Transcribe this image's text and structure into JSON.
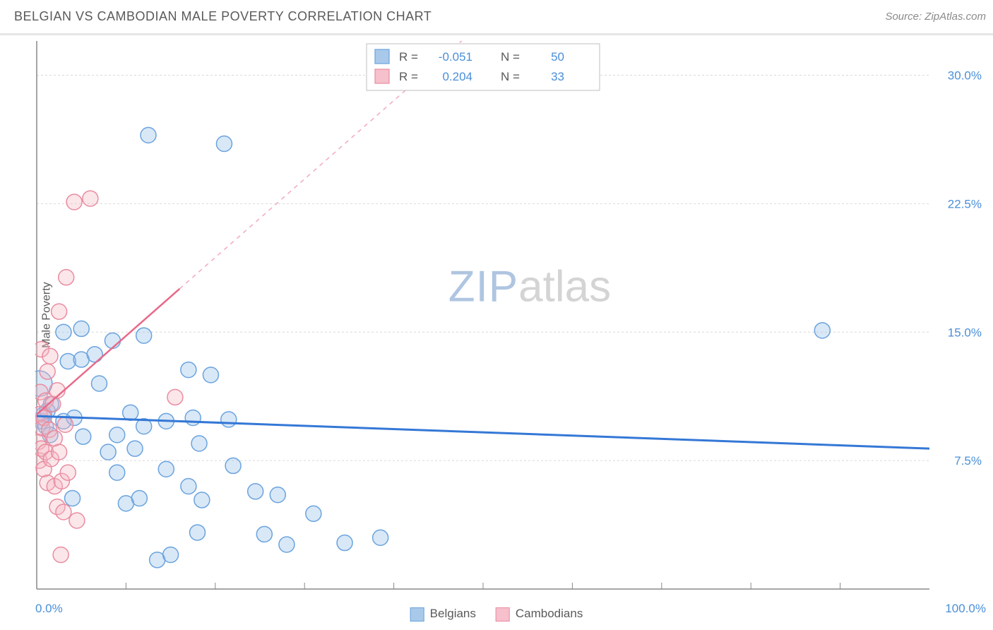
{
  "header": {
    "title": "BELGIAN VS CAMBODIAN MALE POVERTY CORRELATION CHART",
    "source_label": "Source: ZipAtlas.com"
  },
  "watermark": {
    "part1": "ZIP",
    "part2": "atlas"
  },
  "chart": {
    "type": "scatter",
    "background_color": "#ffffff",
    "grid_color": "#d9d9d9",
    "axis_color": "#888888",
    "ylabel": "Male Poverty",
    "ylabel_fontsize": 16,
    "xlim": [
      0,
      100
    ],
    "ylim": [
      0,
      32
    ],
    "x_ticks": [
      10,
      20,
      30,
      40,
      50,
      60,
      70,
      80,
      90
    ],
    "x_min_label": "0.0%",
    "x_max_label": "100.0%",
    "y_gridlines": [
      {
        "value": 7.5,
        "label": "7.5%"
      },
      {
        "value": 15.0,
        "label": "15.0%"
      },
      {
        "value": 22.5,
        "label": "22.5%"
      },
      {
        "value": 30.0,
        "label": "30.0%"
      }
    ],
    "series": [
      {
        "name": "Belgians",
        "color_fill": "#93bce8",
        "color_stroke": "#6aa3de",
        "marker_radius": 11,
        "R": "-0.051",
        "N": "50",
        "regression": {
          "color": "#3478d6",
          "width": 3,
          "y_at_xmin": 10.1,
          "y_at_xmax": 8.2,
          "solid_until_x": 100
        },
        "points": [
          {
            "x": 0.3,
            "y": 12.0,
            "r": 18
          },
          {
            "x": 0.5,
            "y": 9.8
          },
          {
            "x": 0.8,
            "y": 10.2
          },
          {
            "x": 1.0,
            "y": 9.5
          },
          {
            "x": 1.2,
            "y": 10.4
          },
          {
            "x": 1.5,
            "y": 9.0
          },
          {
            "x": 1.6,
            "y": 10.8
          },
          {
            "x": 3.0,
            "y": 15.0
          },
          {
            "x": 3.0,
            "y": 9.8
          },
          {
            "x": 3.5,
            "y": 13.3
          },
          {
            "x": 4.0,
            "y": 5.3
          },
          {
            "x": 4.2,
            "y": 10.0
          },
          {
            "x": 5.0,
            "y": 15.2
          },
          {
            "x": 5.0,
            "y": 13.4
          },
          {
            "x": 5.2,
            "y": 8.9
          },
          {
            "x": 6.5,
            "y": 13.7
          },
          {
            "x": 7.0,
            "y": 12.0
          },
          {
            "x": 8.0,
            "y": 8.0
          },
          {
            "x": 8.5,
            "y": 14.5
          },
          {
            "x": 9.0,
            "y": 9.0
          },
          {
            "x": 9.0,
            "y": 6.8
          },
          {
            "x": 10.0,
            "y": 5.0
          },
          {
            "x": 10.5,
            "y": 10.3
          },
          {
            "x": 11.0,
            "y": 8.2
          },
          {
            "x": 11.5,
            "y": 5.3
          },
          {
            "x": 12.0,
            "y": 14.8
          },
          {
            "x": 12.0,
            "y": 9.5
          },
          {
            "x": 12.5,
            "y": 26.5
          },
          {
            "x": 13.5,
            "y": 1.7
          },
          {
            "x": 14.5,
            "y": 7.0
          },
          {
            "x": 14.5,
            "y": 9.8
          },
          {
            "x": 15.0,
            "y": 2.0
          },
          {
            "x": 17.0,
            "y": 12.8
          },
          {
            "x": 17.0,
            "y": 6.0
          },
          {
            "x": 17.5,
            "y": 10.0
          },
          {
            "x": 18.0,
            "y": 3.3
          },
          {
            "x": 18.2,
            "y": 8.5
          },
          {
            "x": 18.5,
            "y": 5.2
          },
          {
            "x": 19.5,
            "y": 12.5
          },
          {
            "x": 21.0,
            "y": 26.0
          },
          {
            "x": 21.5,
            "y": 9.9
          },
          {
            "x": 22.0,
            "y": 7.2
          },
          {
            "x": 24.5,
            "y": 5.7
          },
          {
            "x": 25.5,
            "y": 3.2
          },
          {
            "x": 27.0,
            "y": 5.5
          },
          {
            "x": 28.0,
            "y": 2.6
          },
          {
            "x": 31.0,
            "y": 4.4
          },
          {
            "x": 34.5,
            "y": 2.7
          },
          {
            "x": 38.5,
            "y": 3.0
          },
          {
            "x": 88.0,
            "y": 15.1
          }
        ]
      },
      {
        "name": "Cambodians",
        "color_fill": "#f4b6c3",
        "color_stroke": "#ea8ca0",
        "marker_radius": 11,
        "R": "0.204",
        "N": "33",
        "regression": {
          "color": "#e76a8a",
          "width": 2.5,
          "y_at_xmin": 10.2,
          "y_at_xmax": 56.0,
          "solid_until_x": 16
        },
        "points": [
          {
            "x": 0.2,
            "y": 8.6
          },
          {
            "x": 0.3,
            "y": 10.2
          },
          {
            "x": 0.3,
            "y": 7.5
          },
          {
            "x": 0.4,
            "y": 11.5
          },
          {
            "x": 0.5,
            "y": 8.2
          },
          {
            "x": 0.5,
            "y": 14.0
          },
          {
            "x": 0.6,
            "y": 9.4
          },
          {
            "x": 0.8,
            "y": 10.0
          },
          {
            "x": 0.8,
            "y": 7.0
          },
          {
            "x": 1.0,
            "y": 11.0
          },
          {
            "x": 1.0,
            "y": 8.0
          },
          {
            "x": 1.2,
            "y": 12.7
          },
          {
            "x": 1.2,
            "y": 6.2
          },
          {
            "x": 1.4,
            "y": 9.3
          },
          {
            "x": 1.5,
            "y": 13.6
          },
          {
            "x": 1.6,
            "y": 7.6
          },
          {
            "x": 1.8,
            "y": 10.8
          },
          {
            "x": 2.0,
            "y": 6.0
          },
          {
            "x": 2.0,
            "y": 8.8
          },
          {
            "x": 2.3,
            "y": 11.6
          },
          {
            "x": 2.3,
            "y": 4.8
          },
          {
            "x": 2.5,
            "y": 8.0
          },
          {
            "x": 2.5,
            "y": 16.2
          },
          {
            "x": 2.7,
            "y": 2.0
          },
          {
            "x": 2.8,
            "y": 6.3
          },
          {
            "x": 3.0,
            "y": 4.5
          },
          {
            "x": 3.2,
            "y": 9.6
          },
          {
            "x": 3.3,
            "y": 18.2
          },
          {
            "x": 3.5,
            "y": 6.8
          },
          {
            "x": 4.2,
            "y": 22.6
          },
          {
            "x": 4.5,
            "y": 4.0
          },
          {
            "x": 6.0,
            "y": 22.8
          },
          {
            "x": 15.5,
            "y": 11.2
          }
        ]
      }
    ],
    "legend_top": {
      "rows": [
        {
          "swatch": "blue",
          "r_label": "R =",
          "r_value": "-0.051",
          "n_label": "N =",
          "n_value": "50"
        },
        {
          "swatch": "pink",
          "r_label": "R =",
          "r_value": "0.204",
          "n_label": "N =",
          "n_value": "33"
        }
      ]
    },
    "legend_bottom": [
      {
        "swatch": "blue",
        "label": "Belgians"
      },
      {
        "swatch": "pink",
        "label": "Cambodians"
      }
    ]
  }
}
